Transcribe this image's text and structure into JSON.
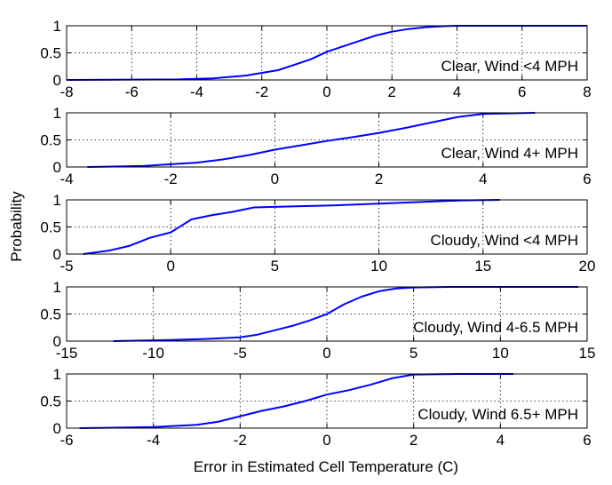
{
  "figure": {
    "ylabel": "Probability",
    "xlabel": "Error in Estimated Cell Temperature (C)"
  },
  "chart_data": [
    {
      "type": "line",
      "annotation": "Clear, Wind <4 MPH",
      "xlim": [
        -8,
        8
      ],
      "ylim": [
        0,
        1
      ],
      "xticks": [
        -8,
        -6,
        -4,
        -2,
        0,
        2,
        4,
        6,
        8
      ],
      "yticks": [
        0,
        0.5,
        1
      ],
      "grid": true,
      "line_color": "#0000ff",
      "series": [
        {
          "x": [
            -8,
            -4.6,
            -3.5,
            -2.5,
            -1.5,
            -1.0,
            -0.5,
            0,
            0.5,
            1.0,
            1.5,
            2.0,
            2.5,
            3.0,
            3.5,
            4.0,
            8
          ],
          "y": [
            0,
            0.01,
            0.03,
            0.08,
            0.18,
            0.28,
            0.38,
            0.52,
            0.62,
            0.72,
            0.82,
            0.89,
            0.94,
            0.97,
            0.99,
            1.0,
            1.0
          ]
        }
      ]
    },
    {
      "type": "line",
      "annotation": "Clear, Wind 4+ MPH",
      "xlim": [
        -4,
        6
      ],
      "ylim": [
        0,
        1
      ],
      "xticks": [
        -4,
        -2,
        0,
        2,
        4,
        6
      ],
      "yticks": [
        0,
        0.5,
        1
      ],
      "grid": true,
      "line_color": "#0000ff",
      "series": [
        {
          "x": [
            -3.6,
            -2.5,
            -2.0,
            -1.5,
            -1.0,
            -0.5,
            0,
            0.5,
            1.0,
            1.5,
            2.0,
            2.5,
            3.0,
            3.5,
            4.0,
            5.0
          ],
          "y": [
            0,
            0.02,
            0.05,
            0.08,
            0.14,
            0.22,
            0.32,
            0.4,
            0.48,
            0.55,
            0.63,
            0.72,
            0.82,
            0.92,
            0.98,
            1.0
          ]
        }
      ]
    },
    {
      "type": "line",
      "annotation": "Cloudy, Wind <4 MPH",
      "xlim": [
        -5,
        20
      ],
      "ylim": [
        0,
        1
      ],
      "xticks": [
        -5,
        0,
        5,
        10,
        15,
        20
      ],
      "yticks": [
        0,
        0.5,
        1
      ],
      "grid": true,
      "line_color": "#0000ff",
      "series": [
        {
          "x": [
            -4.2,
            -3.0,
            -2.0,
            -1.0,
            0,
            0.5,
            1.0,
            1.5,
            2.0,
            3.0,
            4.0,
            6.0,
            8.0,
            10.0,
            12.0,
            14.0,
            15.8
          ],
          "y": [
            0,
            0.06,
            0.15,
            0.3,
            0.4,
            0.52,
            0.64,
            0.68,
            0.72,
            0.78,
            0.86,
            0.88,
            0.9,
            0.93,
            0.96,
            0.99,
            1.0
          ]
        }
      ]
    },
    {
      "type": "line",
      "annotation": "Cloudy, Wind 4-6.5 MPH",
      "xlim": [
        -15,
        15
      ],
      "ylim": [
        0,
        1
      ],
      "xticks": [
        -15,
        -10,
        -5,
        0,
        5,
        10,
        15
      ],
      "yticks": [
        0,
        0.5,
        1
      ],
      "grid": true,
      "line_color": "#0000ff",
      "series": [
        {
          "x": [
            -12.3,
            -9,
            -7,
            -5,
            -4,
            -3,
            -2,
            -1,
            0,
            1,
            2,
            3,
            4,
            5,
            7,
            10,
            14.5
          ],
          "y": [
            0,
            0.02,
            0.04,
            0.07,
            0.12,
            0.2,
            0.28,
            0.38,
            0.5,
            0.68,
            0.82,
            0.92,
            0.97,
            0.99,
            1.0,
            1.0,
            1.0
          ]
        }
      ]
    },
    {
      "type": "line",
      "annotation": "Cloudy, Wind 6.5+ MPH",
      "xlim": [
        -6,
        6
      ],
      "ylim": [
        0,
        1
      ],
      "xticks": [
        -6,
        -4,
        -2,
        0,
        2,
        4,
        6
      ],
      "yticks": [
        0,
        0.5,
        1
      ],
      "grid": true,
      "line_color": "#0000ff",
      "series": [
        {
          "x": [
            -5.7,
            -4.0,
            -3.0,
            -2.5,
            -2.0,
            -1.5,
            -1.0,
            -0.5,
            0,
            0.5,
            1.0,
            1.5,
            2.0,
            3.0,
            4.3
          ],
          "y": [
            0,
            0.02,
            0.06,
            0.12,
            0.22,
            0.32,
            0.4,
            0.5,
            0.62,
            0.7,
            0.8,
            0.92,
            0.99,
            1.0,
            1.0
          ]
        }
      ]
    }
  ]
}
